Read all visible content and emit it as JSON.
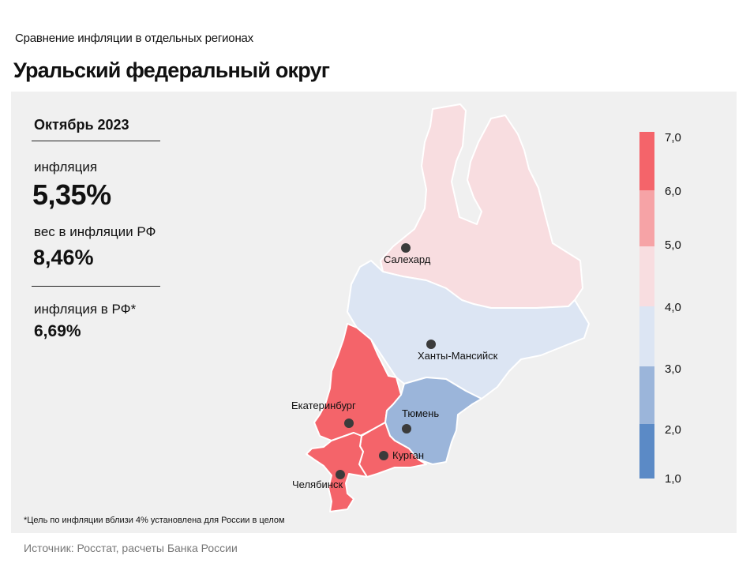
{
  "header": {
    "subtitle": "Сравнение  инфляции  в отдельных  регионах",
    "title": "Уральский федеральный округ"
  },
  "stats": {
    "period": "Октябрь 2023",
    "inflation_label": "инфляция",
    "inflation_value": "5,35%",
    "weight_label": "вес в инфляции  РФ",
    "weight_value": "8,46%",
    "rf_label": "инфляция  в РФ*",
    "rf_value": "6,69%"
  },
  "cities": {
    "salekhard": "Салехард",
    "khanty": "Ханты-Мансийск",
    "ekaterinburg": "Екатеринбург",
    "tyumen": "Тюмень",
    "kurgan": "Курган",
    "chelyabinsk": "Челябинск"
  },
  "legend": {
    "values": [
      "7,0",
      "6,0",
      "5,0",
      "4,0",
      "3,0",
      "2,0",
      "1,0"
    ],
    "colors": [
      "#f4646a",
      "#f6a3a6",
      "#f8dde0",
      "#dce5f3",
      "#9bb5da",
      "#5b8ac6"
    ]
  },
  "regions": [
    {
      "name": "Ямало-Ненецкий АО",
      "color": "#f8dde0"
    },
    {
      "name": "Ханты-Мансийский АО",
      "color": "#dce5f3"
    },
    {
      "name": "Свердловская область",
      "color": "#f4646a"
    },
    {
      "name": "Тюменская область",
      "color": "#9bb5da"
    },
    {
      "name": "Курганская область",
      "color": "#f4646a"
    },
    {
      "name": "Челябинская область",
      "color": "#f4646a"
    }
  ],
  "footnote": "*Цель по инфляции вблизи 4% установлена для России в целом",
  "source": "Источник: Росстат, расчеты Банка России"
}
